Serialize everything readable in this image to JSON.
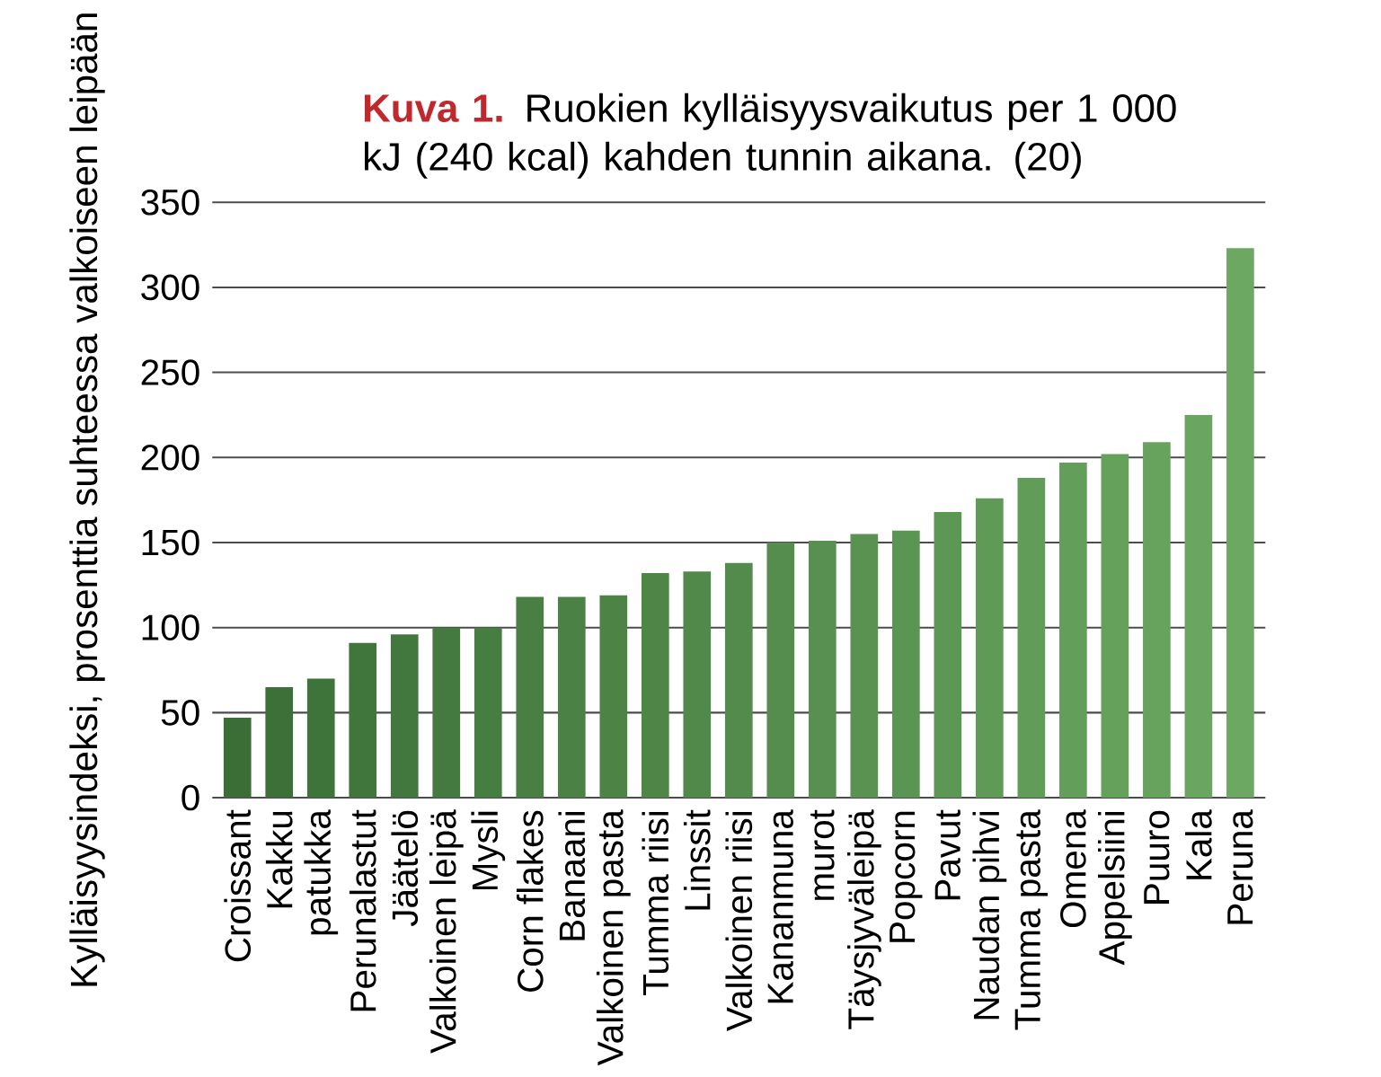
{
  "chart_data": {
    "type": "bar",
    "title": "Kuva 1.",
    "subtitle": "Ruokien kylläisyysvaikutus per 1 000 kJ (240 kcal) kahden tunnin aikana. (20)",
    "ylabel": "Kylläisyysindeksi, prosenttia suhteessa valkoiseen leipään",
    "categories": [
      "Croissant",
      "Kakku",
      "patukka",
      "Perunalastut",
      "Jäätelö",
      "Valkoinen leipä",
      "Mysli",
      "Corn flakes",
      "Banaani",
      "Valkoinen pasta",
      "Tumma riisi",
      "Linssit",
      "Valkoinen riisi",
      "Kananmuna",
      "murot",
      "Täysjyväleipä",
      "Popcorn",
      "Pavut",
      "Naudan pihvi",
      "Tumma pasta",
      "Omena",
      "Appelsiini",
      "Puuro",
      "Kala",
      "Peruna"
    ],
    "values": [
      47,
      65,
      70,
      91,
      96,
      100,
      100,
      118,
      118,
      119,
      132,
      133,
      138,
      150,
      151,
      155,
      157,
      168,
      176,
      188,
      197,
      202,
      209,
      225,
      323
    ],
    "colors": [
      "#3a6e36",
      "#3c7038",
      "#3e733a",
      "#40753b",
      "#42783d",
      "#447a3f",
      "#467d41",
      "#497f43",
      "#4b8145",
      "#4d8446",
      "#4f8648",
      "#51894a",
      "#538b4c",
      "#558d4e",
      "#579050",
      "#599251",
      "#5b9553",
      "#5d9755",
      "#5f9a57",
      "#629c59",
      "#649e5b",
      "#66a15c",
      "#68a35e",
      "#6aa660",
      "#6ca862"
    ],
    "ylim": [
      0,
      350
    ],
    "yticks": [
      0,
      50,
      100,
      150,
      200,
      250,
      300,
      350
    ],
    "grid": "y"
  }
}
